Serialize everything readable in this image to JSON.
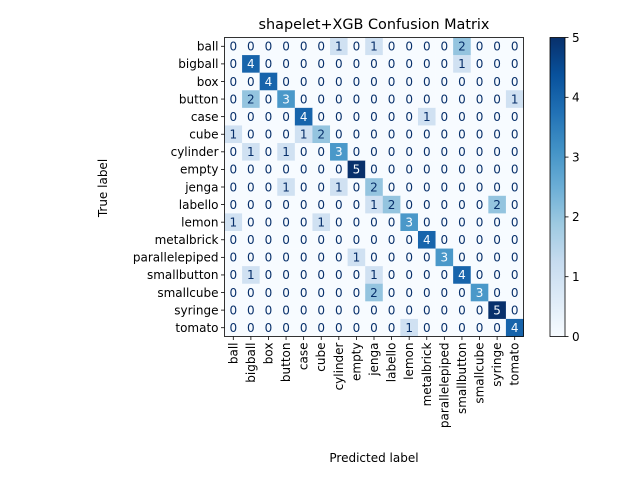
{
  "chart_data": {
    "type": "heatmap",
    "title": "shapelet+XGB Confusion Matrix",
    "xlabel": "Predicted label",
    "ylabel": "True label",
    "labels": [
      "ball",
      "bigball",
      "box",
      "button",
      "case",
      "cube",
      "cylinder",
      "empty",
      "jenga",
      "labello",
      "lemon",
      "metalbrick",
      "parallelepiped",
      "smallbutton",
      "smallcube",
      "syringe",
      "tomato"
    ],
    "matrix": [
      [
        0,
        0,
        0,
        0,
        0,
        0,
        1,
        0,
        1,
        0,
        0,
        0,
        0,
        2,
        0,
        0,
        0
      ],
      [
        0,
        4,
        0,
        0,
        0,
        0,
        0,
        0,
        0,
        0,
        0,
        0,
        0,
        1,
        0,
        0,
        0
      ],
      [
        0,
        0,
        4,
        0,
        0,
        0,
        0,
        0,
        0,
        0,
        0,
        0,
        0,
        0,
        0,
        0,
        0
      ],
      [
        0,
        2,
        0,
        3,
        0,
        0,
        0,
        0,
        0,
        0,
        0,
        0,
        0,
        0,
        0,
        0,
        1
      ],
      [
        0,
        0,
        0,
        0,
        4,
        0,
        0,
        0,
        0,
        0,
        0,
        1,
        0,
        0,
        0,
        0,
        0
      ],
      [
        1,
        0,
        0,
        0,
        1,
        2,
        0,
        0,
        0,
        0,
        0,
        0,
        0,
        0,
        0,
        0,
        0
      ],
      [
        0,
        1,
        0,
        1,
        0,
        0,
        3,
        0,
        0,
        0,
        0,
        0,
        0,
        0,
        0,
        0,
        0
      ],
      [
        0,
        0,
        0,
        0,
        0,
        0,
        0,
        5,
        0,
        0,
        0,
        0,
        0,
        0,
        0,
        0,
        0
      ],
      [
        0,
        0,
        0,
        1,
        0,
        0,
        1,
        0,
        2,
        0,
        0,
        0,
        0,
        0,
        0,
        0,
        0
      ],
      [
        0,
        0,
        0,
        0,
        0,
        0,
        0,
        0,
        1,
        2,
        0,
        0,
        0,
        0,
        0,
        2,
        0
      ],
      [
        1,
        0,
        0,
        0,
        0,
        1,
        0,
        0,
        0,
        0,
        3,
        0,
        0,
        0,
        0,
        0,
        0
      ],
      [
        0,
        0,
        0,
        0,
        0,
        0,
        0,
        0,
        0,
        0,
        0,
        4,
        0,
        0,
        0,
        0,
        0
      ],
      [
        0,
        0,
        0,
        0,
        0,
        0,
        0,
        1,
        0,
        0,
        0,
        0,
        3,
        0,
        0,
        0,
        0
      ],
      [
        0,
        1,
        0,
        0,
        0,
        0,
        0,
        0,
        1,
        0,
        0,
        0,
        0,
        4,
        0,
        0,
        0
      ],
      [
        0,
        0,
        0,
        0,
        0,
        0,
        0,
        0,
        2,
        0,
        0,
        0,
        0,
        0,
        3,
        0,
        0
      ],
      [
        0,
        0,
        0,
        0,
        0,
        0,
        0,
        0,
        0,
        0,
        0,
        0,
        0,
        0,
        0,
        5,
        0
      ],
      [
        0,
        0,
        0,
        0,
        0,
        0,
        0,
        0,
        0,
        0,
        1,
        0,
        0,
        0,
        0,
        0,
        4
      ]
    ],
    "colorbar": {
      "min": 0,
      "max": 5,
      "ticks": [
        0,
        1,
        2,
        3,
        4,
        5
      ],
      "colormap": "Blues"
    },
    "colors": {
      "low": "#f7fbff",
      "high": "#08306b",
      "text_dark": "#08306b",
      "text_light": "#f7fbff"
    }
  }
}
